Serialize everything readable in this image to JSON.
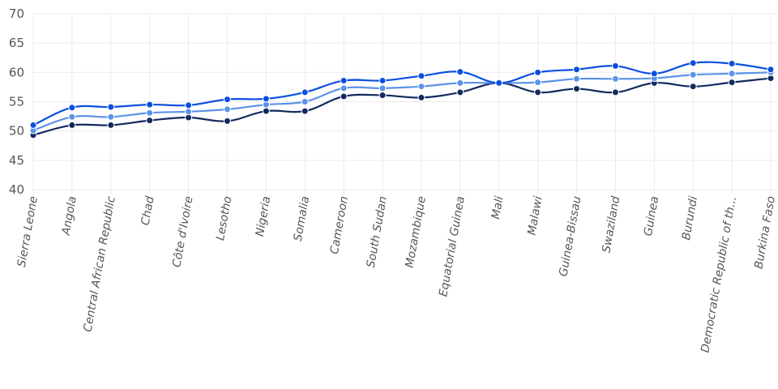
{
  "chart_data": {
    "type": "line",
    "title": "",
    "xlabel": "",
    "ylabel": "",
    "ylim": [
      40,
      70
    ],
    "yticks": [
      40,
      45,
      50,
      55,
      60,
      65,
      70
    ],
    "grid": true,
    "legend": null,
    "categories": [
      "Sierra Leone",
      "Angola",
      "Central African Republic",
      "Chad",
      "Côte d'Ivoire",
      "Lesotho",
      "Nigeria",
      "Somalia",
      "Cameroon",
      "South Sudan",
      "Mozambique",
      "Equatorial Guinea",
      "Mali",
      "Malawi",
      "Guinea-Bissau",
      "Swaziland",
      "Guinea",
      "Burundi",
      "Democratic Republic of th...",
      "Burkina Faso"
    ],
    "series": [
      {
        "name": "series-1",
        "color": "#0b4fe0",
        "values": [
          51.0,
          54.0,
          54.1,
          54.5,
          54.4,
          55.4,
          55.5,
          56.6,
          58.6,
          58.6,
          59.4,
          60.1,
          58.2,
          60.0,
          60.5,
          61.1,
          59.8,
          61.6,
          61.5,
          60.5
        ]
      },
      {
        "name": "series-2",
        "color": "#5b93e8",
        "values": [
          50.1,
          52.4,
          52.4,
          53.1,
          53.3,
          53.7,
          54.5,
          55.0,
          57.3,
          57.3,
          57.6,
          58.2,
          58.2,
          58.3,
          58.9,
          58.9,
          59.0,
          59.6,
          59.8,
          60.0
        ]
      },
      {
        "name": "series-3",
        "color": "#132a5e",
        "values": [
          49.3,
          51.0,
          51.0,
          51.8,
          52.3,
          51.7,
          53.4,
          53.4,
          55.9,
          56.1,
          55.7,
          56.6,
          58.2,
          56.6,
          57.2,
          56.6,
          58.2,
          57.6,
          58.3,
          59.0
        ]
      }
    ]
  }
}
